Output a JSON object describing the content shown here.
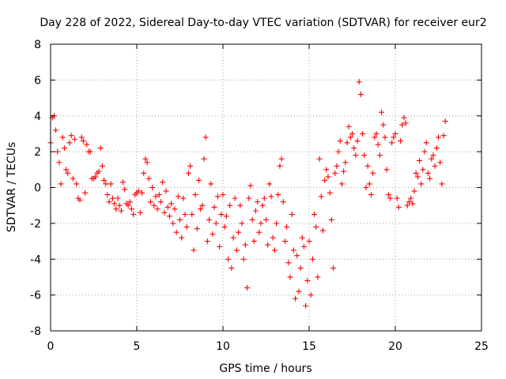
{
  "chart_data": {
    "type": "scatter",
    "title": "Day 228 of 2022, Sidereal Day-to-day VTEC variation (SDTVAR) for receiver eur2",
    "xlabel": "GPS time / hours",
    "ylabel": "SDTVAR / TECUs",
    "xlim": [
      0,
      25
    ],
    "ylim": [
      -8,
      8
    ],
    "xticks": [
      0,
      5,
      10,
      15,
      20,
      25
    ],
    "yticks": [
      -8,
      -6,
      -4,
      -2,
      0,
      2,
      4,
      6,
      8
    ],
    "xtick_labels": [
      "0",
      "5",
      "10",
      "15",
      "20",
      "25"
    ],
    "ytick_labels": [
      "-8",
      "-6",
      "-4",
      "-2",
      "0",
      "2",
      "4",
      "6",
      "8"
    ],
    "grid": true,
    "marker": "plus",
    "series": [
      {
        "name": "SDTVAR",
        "color": "#ff0000",
        "x": [
          0.0,
          0.1,
          0.2,
          0.3,
          0.4,
          0.5,
          0.6,
          0.7,
          0.8,
          0.9,
          1.0,
          1.1,
          1.2,
          1.3,
          1.4,
          1.5,
          1.6,
          1.7,
          1.8,
          1.9,
          2.0,
          2.1,
          2.2,
          2.3,
          2.4,
          2.5,
          2.6,
          2.7,
          2.8,
          2.9,
          3.0,
          3.1,
          3.2,
          3.3,
          3.4,
          3.5,
          3.6,
          3.7,
          3.8,
          3.9,
          4.0,
          4.1,
          4.2,
          4.3,
          4.4,
          4.5,
          4.6,
          4.7,
          4.8,
          4.9,
          5.0,
          5.1,
          5.2,
          5.3,
          5.4,
          5.5,
          5.6,
          5.7,
          5.8,
          5.9,
          6.0,
          6.1,
          6.2,
          6.3,
          6.4,
          6.5,
          6.6,
          6.7,
          6.8,
          6.9,
          7.0,
          7.1,
          7.2,
          7.3,
          7.4,
          7.5,
          7.6,
          7.7,
          7.8,
          7.9,
          8.0,
          8.1,
          8.2,
          8.3,
          8.4,
          8.5,
          8.6,
          8.7,
          8.8,
          8.9,
          9.0,
          9.1,
          9.2,
          9.3,
          9.4,
          9.5,
          9.6,
          9.7,
          9.8,
          9.9,
          10.0,
          10.1,
          10.2,
          10.3,
          10.4,
          10.5,
          10.6,
          10.7,
          10.8,
          10.9,
          11.0,
          11.1,
          11.2,
          11.3,
          11.4,
          11.5,
          11.6,
          11.7,
          11.8,
          11.9,
          12.0,
          12.1,
          12.2,
          12.3,
          12.4,
          12.5,
          12.6,
          12.7,
          12.8,
          12.9,
          13.0,
          13.1,
          13.2,
          13.3,
          13.4,
          13.5,
          13.6,
          13.7,
          13.8,
          13.9,
          14.0,
          14.1,
          14.2,
          14.3,
          14.4,
          14.5,
          14.6,
          14.7,
          14.8,
          14.9,
          15.0,
          15.1,
          15.2,
          15.3,
          15.4,
          15.5,
          15.6,
          15.7,
          15.8,
          15.9,
          16.0,
          16.1,
          16.2,
          16.3,
          16.4,
          16.5,
          16.6,
          16.7,
          16.8,
          16.9,
          17.0,
          17.1,
          17.2,
          17.3,
          17.4,
          17.5,
          17.6,
          17.7,
          17.8,
          17.9,
          18.0,
          18.1,
          18.2,
          18.3,
          18.4,
          18.5,
          18.6,
          18.7,
          18.8,
          18.9,
          19.0,
          19.1,
          19.2,
          19.3,
          19.4,
          19.5,
          19.6,
          19.7,
          19.8,
          19.9,
          20.0,
          20.1,
          20.2,
          20.3,
          20.4,
          20.5,
          20.6,
          20.7,
          20.8,
          20.9,
          21.0,
          21.1,
          21.2,
          21.3,
          21.4,
          21.5,
          21.6,
          21.7,
          21.8,
          21.9,
          22.0,
          22.1,
          22.2,
          22.3,
          22.4,
          22.5,
          22.6,
          22.7,
          22.8,
          22.9
        ],
        "y": [
          2.5,
          3.9,
          4.0,
          3.2,
          2.0,
          1.4,
          0.2,
          2.8,
          2.2,
          1.0,
          0.8,
          2.5,
          2.9,
          0.5,
          2.7,
          0.2,
          -0.6,
          -0.7,
          2.8,
          2.6,
          -0.3,
          2.4,
          2.0,
          2.0,
          0.5,
          0.5,
          0.6,
          0.8,
          0.9,
          2.2,
          1.2,
          0.4,
          0.2,
          -0.4,
          -0.8,
          0.2,
          -0.6,
          -0.9,
          -1.2,
          -0.6,
          -1.0,
          -1.3,
          0.3,
          -0.1,
          -0.9,
          -1.0,
          -0.8,
          -1.2,
          -1.5,
          -0.4,
          -0.3,
          -0.2,
          -1.4,
          -0.3,
          0.8,
          1.6,
          1.4,
          0.5,
          -0.8,
          0.0,
          -1.0,
          -0.5,
          -1.2,
          -0.4,
          -0.8,
          0.3,
          -1.4,
          -0.2,
          -1.1,
          -1.6,
          -0.9,
          -2.0,
          -1.2,
          -2.5,
          -0.5,
          -1.8,
          -2.8,
          -0.6,
          -1.5,
          -2.2,
          0.8,
          1.2,
          -1.5,
          -3.5,
          -0.4,
          -2.3,
          0.4,
          -1.2,
          -1.0,
          1.6,
          2.8,
          -3.0,
          -1.8,
          0.2,
          -2.6,
          -1.1,
          -2.0,
          -0.5,
          -3.3,
          -1.5,
          -0.4,
          -2.2,
          -1.6,
          -4.0,
          -1.0,
          -4.5,
          -2.8,
          -0.6,
          -3.5,
          -2.5,
          -1.0,
          -2.0,
          -4.0,
          -3.2,
          -5.6,
          -0.6,
          0.1,
          -1.8,
          -3.0,
          -1.3,
          -0.8,
          -2.5,
          -2.0,
          -1.0,
          -0.6,
          -1.8,
          -3.2,
          0.2,
          -0.5,
          -2.8,
          -3.5,
          -2.0,
          -0.4,
          1.2,
          1.6,
          -0.8,
          -3.0,
          -2.2,
          -4.2,
          -5.0,
          -1.5,
          -3.5,
          -6.2,
          -3.8,
          -5.8,
          -4.5,
          -2.8,
          -3.3,
          -6.6,
          -5.2,
          -3.0,
          -6.0,
          -4.0,
          -1.5,
          -2.2,
          -5.0,
          1.6,
          -0.5,
          -2.4,
          0.4,
          1.0,
          0.6,
          -0.3,
          -1.8,
          -4.5,
          0.8,
          1.2,
          2.0,
          2.6,
          0.2,
          0.9,
          1.4,
          2.5,
          3.4,
          2.8,
          3.0,
          2.2,
          1.8,
          2.6,
          5.9,
          5.2,
          3.0,
          1.8,
          0.0,
          1.2,
          0.2,
          -0.4,
          0.8,
          2.8,
          3.0,
          2.4,
          1.8,
          4.2,
          3.5,
          2.8,
          1.0,
          -0.4,
          -0.6,
          2.5,
          2.8,
          3.0,
          -0.6,
          -1.1,
          2.6,
          3.5,
          3.9,
          3.6,
          -1.0,
          -0.8,
          -0.6,
          -0.9,
          -0.2,
          0.8,
          0.6,
          1.5,
          0.2,
          1.0,
          2.0,
          2.5,
          0.8,
          0.5,
          1.6,
          1.8,
          1.2,
          2.2,
          2.8,
          1.4,
          0.2,
          2.9,
          3.7
        ]
      }
    ]
  }
}
